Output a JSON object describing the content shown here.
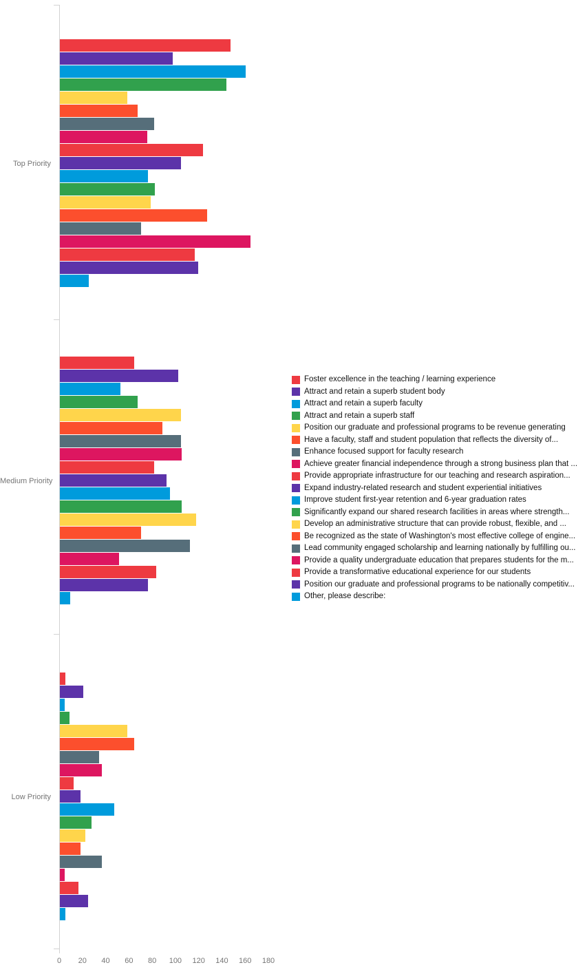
{
  "chart_data": {
    "type": "bar",
    "orientation": "horizontal",
    "title": "",
    "xlabel": "",
    "ylabel": "",
    "grid": false,
    "legend_position": "right-center",
    "xlim": [
      0,
      180
    ],
    "x_ticks": [
      0,
      20,
      40,
      60,
      80,
      100,
      120,
      140,
      160,
      180
    ],
    "categories": [
      "Top Priority",
      "Medium Priority",
      "Low Priority"
    ],
    "series": [
      {
        "name": "Foster excellence in the teaching / learning experience",
        "color": "#EE3A41",
        "values": [
          147,
          64,
          5
        ]
      },
      {
        "name": "Attract and retain a superb student body",
        "color": "#5C33A9",
        "values": [
          97,
          102,
          20
        ]
      },
      {
        "name": "Attract and retain a superb faculty",
        "color": "#009BDC",
        "values": [
          160,
          52,
          4
        ]
      },
      {
        "name": "Attract and retain a superb staff",
        "color": "#31A14D",
        "values": [
          143,
          67,
          8
        ]
      },
      {
        "name": "Position our graduate and professional programs to be revenue generating",
        "color": "#FFD54B",
        "values": [
          58,
          104,
          58
        ]
      },
      {
        "name": "Have a faculty, staff and student population that reflects the diversity of...",
        "color": "#FC4F2D",
        "values": [
          67,
          88,
          64
        ]
      },
      {
        "name": "Enhance focused support for faculty research",
        "color": "#566E7A",
        "values": [
          81,
          104,
          34
        ]
      },
      {
        "name": "Achieve greater financial independence through a strong business plan that ...",
        "color": "#DD1660",
        "values": [
          75,
          105,
          36
        ]
      },
      {
        "name": "Provide appropriate infrastructure for our teaching and research aspiration...",
        "color": "#EE3A41",
        "values": [
          123,
          81,
          12
        ]
      },
      {
        "name": "Expand industry-related research and student experiential initiatives",
        "color": "#5C33A9",
        "values": [
          104,
          92,
          18
        ]
      },
      {
        "name": "Improve student first-year retention and 6-year graduation rates",
        "color": "#009BDC",
        "values": [
          76,
          95,
          47
        ]
      },
      {
        "name": "Significantly expand our shared research facilities in areas where strength...",
        "color": "#31A14D",
        "values": [
          82,
          105,
          27
        ]
      },
      {
        "name": "Develop an administrative structure that can provide robust, flexible, and ...",
        "color": "#FFD54B",
        "values": [
          78,
          117,
          22
        ]
      },
      {
        "name": "Be recognized as the state of Washington's most effective college of engine...",
        "color": "#FC4F2D",
        "values": [
          127,
          70,
          18
        ]
      },
      {
        "name": "Lead community engaged scholarship and learning nationally by fulfilling ou...",
        "color": "#566E7A",
        "values": [
          70,
          112,
          36
        ]
      },
      {
        "name": "Provide a quality undergraduate education that prepares students for the m...",
        "color": "#DD1660",
        "values": [
          164,
          51,
          4
        ]
      },
      {
        "name": "Provide a transformative educational experience for our students",
        "color": "#EE3A41",
        "values": [
          116,
          83,
          16
        ]
      },
      {
        "name": "Position our graduate and professional programs to be nationally competitiv...",
        "color": "#5C33A9",
        "values": [
          119,
          76,
          24
        ]
      },
      {
        "name": "Other, please describe:",
        "color": "#009BDC",
        "values": [
          25,
          9,
          5
        ]
      }
    ]
  },
  "style_colors": {
    "axis_line": "#d2d2d2",
    "axis_text": "#757575",
    "legend_text": "#111111",
    "background": "#ffffff"
  }
}
